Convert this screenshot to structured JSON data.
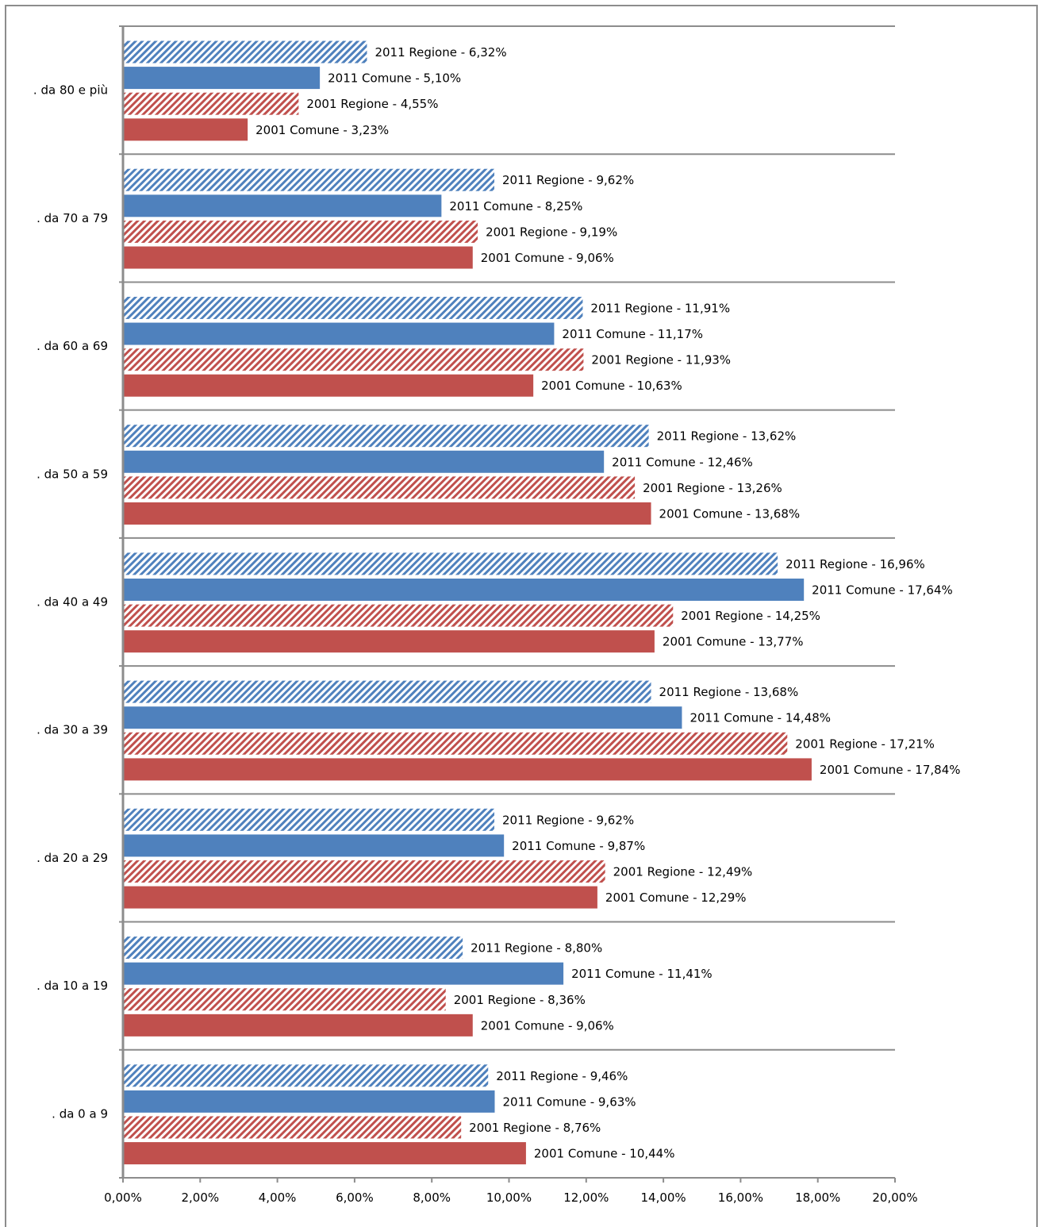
{
  "chart_data": {
    "type": "bar",
    "orientation": "horizontal",
    "categories": [
      ". da 80 e più",
      ". da 70 a 79",
      ". da 60 a 69",
      ". da 50 a 59",
      ". da 40 a 49",
      ". da 30 a 39",
      ". da 20 a 29",
      ". da 10 a 19",
      ". da 0 a 9"
    ],
    "series": [
      {
        "name": "2011 Regione",
        "pattern": "hatched",
        "color": "#4f81bd",
        "values": [
          6.32,
          9.62,
          11.91,
          13.62,
          16.96,
          13.68,
          9.62,
          8.8,
          9.46
        ],
        "labels": [
          "2011 Regione - 6,32%",
          "2011 Regione - 9,62%",
          "2011 Regione - 11,91%",
          "2011 Regione - 13,62%",
          "2011 Regione - 16,96%",
          "2011 Regione - 13,68%",
          "2011 Regione - 9,62%",
          "2011 Regione - 8,80%",
          "2011 Regione - 9,46%"
        ]
      },
      {
        "name": "2011 Comune",
        "pattern": "solid",
        "color": "#4f81bd",
        "values": [
          5.1,
          8.25,
          11.17,
          12.46,
          17.64,
          14.48,
          9.87,
          11.41,
          9.63
        ],
        "labels": [
          "2011 Comune - 5,10%",
          "2011 Comune - 8,25%",
          "2011 Comune - 11,17%",
          "2011 Comune - 12,46%",
          "2011 Comune - 17,64%",
          "2011 Comune - 14,48%",
          "2011 Comune - 9,87%",
          "2011 Comune - 11,41%",
          "2011 Comune - 9,63%"
        ]
      },
      {
        "name": "2001 Regione",
        "pattern": "hatched",
        "color": "#c0504d",
        "values": [
          4.55,
          9.19,
          11.93,
          13.26,
          14.25,
          17.21,
          12.49,
          8.36,
          8.76
        ],
        "labels": [
          "2001 Regione - 4,55%",
          "2001 Regione - 9,19%",
          "2001 Regione - 11,93%",
          "2001 Regione - 13,26%",
          "2001 Regione - 14,25%",
          "2001 Regione - 17,21%",
          "2001 Regione - 12,49%",
          "2001 Regione - 8,36%",
          "2001 Regione - 8,76%"
        ]
      },
      {
        "name": "2001 Comune",
        "pattern": "solid",
        "color": "#c0504d",
        "values": [
          3.23,
          9.06,
          10.63,
          13.68,
          13.77,
          17.84,
          12.29,
          9.06,
          10.44
        ],
        "labels": [
          "2001 Comune - 3,23%",
          "2001 Comune - 9,06%",
          "2001 Comune - 10,63%",
          "2001 Comune - 13,68%",
          "2001 Comune - 13,77%",
          "2001 Comune - 17,84%",
          "2001 Comune - 12,29%",
          "2001 Comune - 9,06%",
          "2001 Comune - 10,44%"
        ]
      }
    ],
    "xlim": [
      0,
      20
    ],
    "ticks": [
      0,
      2,
      4,
      6,
      8,
      10,
      12,
      14,
      16,
      18,
      20
    ],
    "tick_labels": [
      "0,00%",
      "2,00%",
      "4,00%",
      "6,00%",
      "8,00%",
      "10,00%",
      "12,00%",
      "14,00%",
      "16,00%",
      "18,00%",
      "20,00%"
    ],
    "grid": "horizontal category separators",
    "legend": "none",
    "title": "",
    "xlabel": "",
    "ylabel": ""
  }
}
